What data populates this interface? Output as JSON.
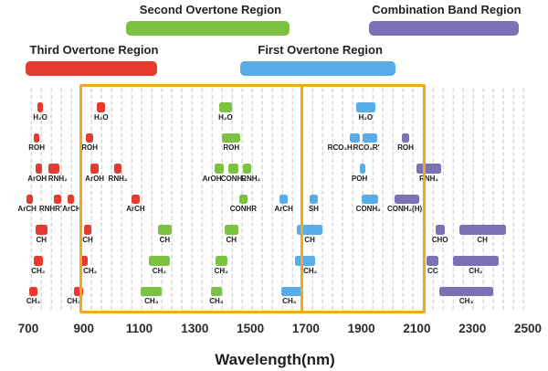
{
  "chart_data": {
    "type": "bar",
    "title": "",
    "xlabel": "Wavelength(nm)",
    "x_axis": {
      "min": 700,
      "max": 2500,
      "unit": "nm",
      "ticks": [
        700,
        900,
        1100,
        1300,
        1500,
        1700,
        1900,
        2100,
        2300,
        2500
      ]
    },
    "colors": {
      "red": "#e53a30",
      "green": "#7cc142",
      "blue": "#58ace8",
      "purple": "#7b71b4",
      "box": "#f5a71f",
      "grid": "#d9d9d9",
      "text": "#1c1c1c"
    },
    "regions": [
      {
        "id": "second-overtone-region",
        "label": "Second Overtone Region",
        "color": "#7cc142",
        "tier": "upper",
        "nm": [
          1052,
          1641
        ]
      },
      {
        "id": "combination-band-region",
        "label": "Combination Band Region",
        "color": "#7b71b4",
        "tier": "upper",
        "nm": [
          1927,
          2467
        ]
      },
      {
        "id": "third-overtone-region",
        "label": "Third Overtone Region",
        "color": "#e53a30",
        "tier": "lower",
        "nm": [
          690,
          1164
        ]
      },
      {
        "id": "first-overtone-region",
        "label": "First Overtone Region",
        "color": "#58ace8",
        "tier": "lower",
        "nm": [
          1462,
          2022
        ]
      }
    ],
    "highlight_box": {
      "color": "#f5a71f",
      "nm": [
        890,
        2127
      ],
      "divider_nm": 1684
    },
    "band_rows": [
      {
        "row": "H2O",
        "bands": [
          {
            "label": "H₂O",
            "color": "red",
            "nm": [
              732,
              754
            ]
          },
          {
            "label": "H₂O",
            "color": "red",
            "nm": [
              948,
              977
            ]
          },
          {
            "label": "H₂O",
            "color": "green",
            "nm": [
              1387,
              1434
            ]
          },
          {
            "label": "H₂O",
            "color": "blue",
            "nm": [
              1881,
              1950
            ]
          }
        ]
      },
      {
        "row": "ROH",
        "bands": [
          {
            "label": "ROH",
            "color": "red",
            "nm": [
              719,
              741
            ]
          },
          {
            "label": "ROH",
            "color": "red",
            "nm": [
              908,
              934
            ]
          },
          {
            "label": "ROH",
            "color": "green",
            "nm": [
              1399,
              1464
            ]
          },
          {
            "label": "RCO₂H",
            "color": "blue",
            "nm": [
              1858,
              1893
            ],
            "label_dx": -16
          },
          {
            "label": "RCO₂R'",
            "color": "blue",
            "nm": [
              1905,
              1957
            ],
            "label_dx": -4
          },
          {
            "label": "ROH",
            "color": "purple",
            "nm": [
              2045,
              2073
            ]
          }
        ]
      },
      {
        "row": "ArOH-RNH2",
        "bands": [
          {
            "label": "ArOH",
            "color": "red",
            "nm": [
              727,
              750
            ],
            "label_dx": -2
          },
          {
            "label": "RNH₂",
            "color": "red",
            "nm": [
              774,
              812
            ],
            "label_dx": 4
          },
          {
            "label": "ArOH",
            "color": "red",
            "nm": [
              925,
              953
            ]
          },
          {
            "label": "RNH₂",
            "color": "red",
            "nm": [
              1010,
              1035
            ]
          },
          {
            "label": "ArOH",
            "color": "green",
            "nm": [
              1371,
              1405
            ],
            "label_dx": -8
          },
          {
            "label": "CONH₂",
            "color": "green",
            "nm": [
              1420,
              1456
            ]
          },
          {
            "label": "RNH₂",
            "color": "green",
            "nm": [
              1473,
              1504
            ],
            "label_dx": 4
          },
          {
            "label": "POH",
            "color": "blue",
            "nm": [
              1893,
              1913
            ],
            "label_dx": -3
          },
          {
            "label": "RNH₂",
            "color": "purple",
            "nm": [
              2097,
              2189
            ]
          }
        ]
      },
      {
        "row": "ArCH",
        "bands": [
          {
            "label": "ArCH",
            "color": "red",
            "nm": [
              694,
              717
            ],
            "label_dx": -3
          },
          {
            "label": "RNHR'",
            "color": "red",
            "nm": [
              793,
              820
            ],
            "label_dx": -8
          },
          {
            "label": "ArCH",
            "color": "red",
            "nm": [
              842,
              864
            ],
            "label_dx": 1
          },
          {
            "label": "ArCH",
            "color": "red",
            "nm": [
              1073,
              1100
            ]
          },
          {
            "label": "CONHR",
            "color": "green",
            "nm": [
              1460,
              1489
            ]
          },
          {
            "label": "ArCH",
            "color": "blue",
            "nm": [
              1605,
              1636
            ]
          },
          {
            "label": "SH",
            "color": "blue",
            "nm": [
              1713,
              1743
            ]
          },
          {
            "label": "CONH₂",
            "color": "blue",
            "nm": [
              1902,
              1961
            ],
            "label_dx": -2
          },
          {
            "label": "CONH₂(H)",
            "color": "purple",
            "nm": [
              2018,
              2107
            ],
            "label_dx": -2
          }
        ]
      },
      {
        "row": "CH",
        "bands": [
          {
            "label": "CH",
            "color": "red",
            "nm": [
              726,
              768
            ]
          },
          {
            "label": "CH",
            "color": "red",
            "nm": [
              900,
              928
            ]
          },
          {
            "label": "CH",
            "color": "green",
            "nm": [
              1167,
              1216
            ]
          },
          {
            "label": "CH",
            "color": "green",
            "nm": [
              1407,
              1456
            ]
          },
          {
            "label": "CH",
            "color": "blue",
            "nm": [
              1669,
              1759
            ]
          },
          {
            "label": "CHO",
            "color": "purple",
            "nm": [
              2166,
              2200
            ]
          },
          {
            "label": "CH",
            "color": "purple",
            "nm": [
              2252,
              2420
            ]
          }
        ]
      },
      {
        "row": "CH2",
        "bands": [
          {
            "label": "CH₂",
            "color": "red",
            "nm": [
              719,
              752
            ]
          },
          {
            "label": "CH₂",
            "color": "red",
            "nm": [
              884,
              915
            ],
            "label_dx": 7
          },
          {
            "label": "CH₂",
            "color": "green",
            "nm": [
              1135,
              1209
            ]
          },
          {
            "label": "CH₂",
            "color": "green",
            "nm": [
              1374,
              1416
            ]
          },
          {
            "label": "CH₂",
            "color": "blue",
            "nm": [
              1660,
              1732
            ],
            "label_dx": 6
          },
          {
            "label": "CC",
            "color": "purple",
            "nm": [
              2136,
              2178
            ]
          },
          {
            "label": "CH₂",
            "color": "purple",
            "nm": [
              2229,
              2395
            ]
          }
        ]
      },
      {
        "row": "CH3",
        "bands": [
          {
            "label": "CH₃",
            "color": "red",
            "nm": [
              704,
              732
            ]
          },
          {
            "label": "CH₃",
            "color": "red",
            "nm": [
              864,
              897
            ],
            "label_dx": -5
          },
          {
            "label": "CH₃",
            "color": "green",
            "nm": [
              1106,
              1181
            ]
          },
          {
            "label": "CH₃",
            "color": "green",
            "nm": [
              1357,
              1398
            ]
          },
          {
            "label": "CH₃",
            "color": "blue",
            "nm": [
              1611,
              1690
            ],
            "label_dx": -3
          },
          {
            "label": "CH₃",
            "color": "purple",
            "nm": [
              2180,
              2376
            ]
          }
        ]
      }
    ]
  }
}
